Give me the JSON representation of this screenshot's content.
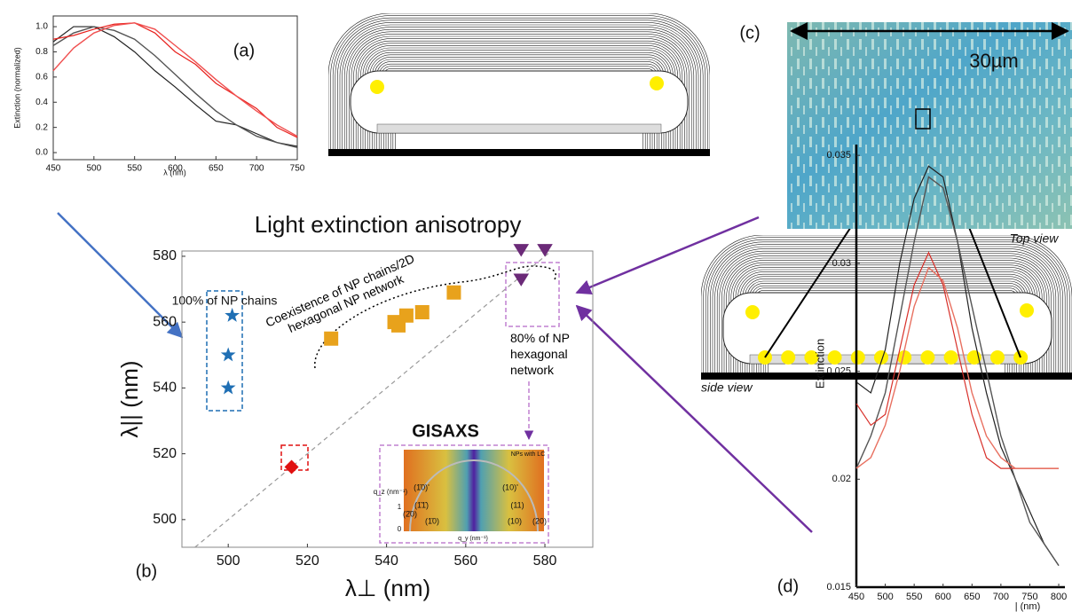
{
  "chart_data": [
    {
      "type": "line",
      "xlabel": "λ (nm)",
      "ylabel": "Extinction (normalized)",
      "x": [
        450,
        475,
        500,
        525,
        550,
        575,
        600,
        625,
        650,
        675,
        700,
        725,
        750
      ],
      "series": [
        {
          "color": "#222222",
          "values": [
            0.88,
            1.0,
            1.0,
            0.92,
            0.8,
            0.65,
            0.52,
            0.38,
            0.25,
            0.22,
            0.15,
            0.08,
            0.05
          ]
        },
        {
          "color": "#555555",
          "values": [
            0.85,
            0.95,
            1.0,
            0.97,
            0.9,
            0.77,
            0.62,
            0.47,
            0.33,
            0.22,
            0.13,
            0.08,
            0.04
          ]
        },
        {
          "color": "#e8201c",
          "values": [
            0.9,
            0.93,
            0.98,
            1.02,
            1.03,
            0.95,
            0.8,
            0.7,
            0.55,
            0.45,
            0.35,
            0.2,
            0.12
          ]
        },
        {
          "color": "#f05050",
          "values": [
            0.65,
            0.83,
            0.95,
            1.01,
            1.03,
            0.98,
            0.85,
            0.72,
            0.58,
            0.45,
            0.33,
            0.22,
            0.13
          ]
        }
      ],
      "xlim": [
        450,
        750
      ],
      "xticks": [
        450,
        500,
        550,
        600,
        650,
        700,
        750
      ],
      "ylim": [
        -0.056,
        1.085
      ],
      "yticks": [
        {
          "value": 0,
          "label": "0.0"
        },
        {
          "value": 0.2,
          "label": "0.2"
        },
        {
          "value": 0.4,
          "label": "0.4"
        },
        {
          "value": 0.6,
          "label": "0.6"
        },
        {
          "value": 0.8,
          "label": "0.8"
        },
        {
          "value": 1,
          "label": "1.0"
        }
      ]
    },
    {
      "type": "scatter",
      "title": "Light extinction anisotropy",
      "xlabel": "λ⊥ (nm)",
      "ylabel": "λ|| (nm)",
      "series": [
        {
          "marker": "star",
          "color": "#1f6fb4",
          "x": [
            501,
            500,
            500
          ],
          "values": [
            562,
            550,
            540
          ]
        },
        {
          "marker": "diamond",
          "color": "#e01010",
          "x": [
            516
          ],
          "values": [
            516
          ]
        },
        {
          "marker": "square",
          "color": "#e8a21c",
          "x": [
            526,
            542,
            543,
            545,
            549,
            557
          ],
          "values": [
            555,
            560,
            559,
            562,
            563,
            569
          ]
        },
        {
          "marker": "triangle",
          "color": "#6b2a78",
          "x": [
            574,
            580,
            574
          ],
          "values": [
            582,
            582,
            573
          ]
        }
      ],
      "xlim": [
        488.3,
        592.1
      ],
      "xticks": [
        500,
        520,
        540,
        560,
        580
      ],
      "ylim": [
        491.6,
        581.6
      ],
      "yticks": [
        500,
        520,
        540,
        560,
        580
      ]
    },
    {
      "type": "line",
      "xlabel": "| (nm)",
      "ylabel": "Extinction",
      "x": [
        450,
        475,
        500,
        525,
        550,
        575,
        600,
        625,
        650,
        675,
        700,
        725,
        750,
        775,
        800
      ],
      "series": [
        {
          "color": "#222222",
          "values": [
            0.0245,
            0.024,
            0.026,
            0.03,
            0.033,
            0.0345,
            0.034,
            0.031,
            0.027,
            0.024,
            0.0215,
            0.02,
            0.0185,
            0.017,
            0.016
          ]
        },
        {
          "color": "#555555",
          "values": [
            0.0205,
            0.022,
            0.024,
            0.0275,
            0.031,
            0.034,
            0.0335,
            0.031,
            0.028,
            0.025,
            0.022,
            0.02,
            0.018,
            0.017,
            0.016
          ]
        },
        {
          "color": "#d8302a",
          "values": [
            0.0235,
            0.0225,
            0.023,
            0.026,
            0.029,
            0.0305,
            0.029,
            0.026,
            0.023,
            0.021,
            0.0205,
            0.0205,
            0.0205,
            0.0205,
            0.0205
          ]
        },
        {
          "color": "#e87060",
          "values": [
            0.0205,
            0.021,
            0.0225,
            0.025,
            0.028,
            0.0298,
            0.0292,
            0.027,
            0.024,
            0.022,
            0.021,
            0.0205,
            0.0205,
            0.0205,
            0.0205
          ]
        }
      ],
      "xlim": [
        450,
        810.7
      ],
      "xticks": [
        450,
        500,
        550,
        600,
        650,
        700,
        750,
        800
      ],
      "ylim": [
        0.015,
        0.0355
      ],
      "yticks": [
        0.035,
        0.03,
        0.025,
        0.02,
        0.015
      ]
    }
  ],
  "panel_labels": [
    "(a)",
    "(b)",
    "(c)",
    "(d)"
  ],
  "annotations": {
    "chains": "100% of NP chains",
    "coexistence": "Coexistence of NP chains/2D hexagonal NP network",
    "hexagonal": "80% of NP hexagonal network",
    "gisaxs": "GISAXS"
  },
  "gisaxs_labels": [
    "NPs with LC",
    "(1̄0)'",
    "(10)'",
    "(1̄1̄)",
    "(11)",
    "(2̄0)",
    "(1̄0)",
    "(10)",
    "(20)",
    "q_z (nm⁻¹)",
    "q_y (nm⁻¹)",
    "1",
    "0"
  ],
  "image": {
    "scale": "30µm",
    "caption": "Top view"
  },
  "schematic": {
    "caption": "side view"
  }
}
